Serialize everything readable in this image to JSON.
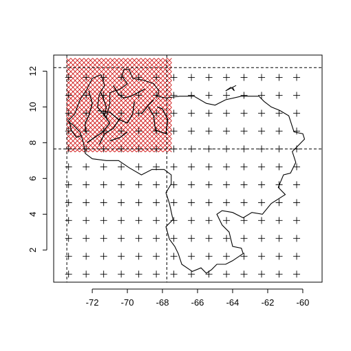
{
  "chart_data": {
    "type": "scatter",
    "title": "",
    "xlabel": "",
    "ylabel": "",
    "xlim": [
      -74.2,
      -58.9
    ],
    "ylim": [
      0.2,
      12.9
    ],
    "x_ticks": [
      -72,
      -70,
      -68,
      -66,
      -64,
      -62,
      -60
    ],
    "y_ticks": [
      2,
      4,
      6,
      8,
      10,
      12
    ],
    "x_tick_labels": [
      "-72",
      "-70",
      "-68",
      "-66",
      "-64",
      "-62",
      "-60"
    ],
    "y_tick_labels": [
      "2",
      "4",
      "6",
      "8",
      "10",
      "12"
    ],
    "grid": false,
    "coarse_grid": {
      "marker": "plus",
      "color": "#000000",
      "x_start": -73.35,
      "x_step": 1.0,
      "x_count": 14,
      "y_start": 0.65,
      "y_step": 1.0,
      "y_count": 12
    },
    "fine_grid": {
      "marker": "cross",
      "color": "#cc0000",
      "x_start": -73.35,
      "x_end": -67.4,
      "x_step": 0.25,
      "y_start": 7.6,
      "y_end": 12.6,
      "y_step": 0.25
    },
    "reference_lines": {
      "vertical": [
        -73.45,
        -67.75
      ],
      "horizontal": [
        12.2,
        7.65
      ],
      "style": "dashed",
      "color": "#000000"
    },
    "outline": [
      [
        -73.4,
        9.2
      ],
      [
        -73.0,
        9.6
      ],
      [
        -72.7,
        10.4
      ],
      [
        -72.3,
        11.0
      ],
      [
        -72.0,
        11.6
      ],
      [
        -71.5,
        11.8
      ],
      [
        -71.3,
        11.2
      ],
      [
        -71.6,
        10.7
      ],
      [
        -71.7,
        10.0
      ],
      [
        -71.2,
        9.4
      ],
      [
        -71.0,
        10.2
      ],
      [
        -71.0,
        10.8
      ],
      [
        -70.4,
        11.0
      ],
      [
        -70.0,
        11.3
      ],
      [
        -70.3,
        11.7
      ],
      [
        -70.2,
        12.1
      ],
      [
        -69.9,
        12.1
      ],
      [
        -69.7,
        11.6
      ],
      [
        -69.1,
        11.5
      ],
      [
        -68.5,
        11.3
      ],
      [
        -68.2,
        10.9
      ],
      [
        -68.3,
        10.6
      ],
      [
        -67.8,
        10.5
      ],
      [
        -67.0,
        10.6
      ],
      [
        -66.2,
        10.6
      ],
      [
        -65.5,
        10.2
      ],
      [
        -65.0,
        10.1
      ],
      [
        -64.4,
        10.4
      ],
      [
        -63.5,
        10.6
      ],
      [
        -62.5,
        10.6
      ],
      [
        -62.2,
        10.3
      ],
      [
        -61.8,
        10.0
      ],
      [
        -61.3,
        9.8
      ],
      [
        -60.8,
        9.5
      ],
      [
        -60.5,
        8.6
      ],
      [
        -60.0,
        8.5
      ],
      [
        -59.9,
        8.2
      ],
      [
        -60.2,
        7.9
      ],
      [
        -60.6,
        7.5
      ],
      [
        -60.4,
        6.9
      ],
      [
        -60.7,
        6.3
      ],
      [
        -61.1,
        6.2
      ],
      [
        -61.4,
        5.5
      ],
      [
        -61.0,
        5.1
      ],
      [
        -61.8,
        4.6
      ],
      [
        -62.3,
        4.0
      ],
      [
        -62.9,
        4.1
      ],
      [
        -63.4,
        3.8
      ],
      [
        -64.0,
        4.1
      ],
      [
        -64.6,
        4.2
      ],
      [
        -64.9,
        4.0
      ],
      [
        -64.6,
        3.4
      ],
      [
        -64.2,
        3.0
      ],
      [
        -64.0,
        2.2
      ],
      [
        -63.5,
        2.1
      ],
      [
        -63.4,
        1.8
      ],
      [
        -64.0,
        1.4
      ],
      [
        -64.4,
        1.2
      ],
      [
        -64.9,
        1.2
      ],
      [
        -65.2,
        0.9
      ],
      [
        -65.5,
        0.7
      ],
      [
        -65.8,
        1.0
      ],
      [
        -66.3,
        0.8
      ],
      [
        -66.9,
        1.2
      ],
      [
        -67.1,
        1.8
      ],
      [
        -67.3,
        2.2
      ],
      [
        -67.6,
        2.6
      ],
      [
        -67.8,
        3.3
      ],
      [
        -67.4,
        3.7
      ],
      [
        -67.6,
        4.6
      ],
      [
        -67.8,
        5.2
      ],
      [
        -67.5,
        5.7
      ],
      [
        -67.5,
        6.2
      ],
      [
        -67.9,
        6.5
      ],
      [
        -68.6,
        6.5
      ],
      [
        -69.2,
        6.2
      ],
      [
        -69.9,
        6.6
      ],
      [
        -70.5,
        7.0
      ],
      [
        -71.2,
        7.0
      ],
      [
        -72.0,
        7.1
      ],
      [
        -72.4,
        7.4
      ],
      [
        -72.5,
        8.0
      ],
      [
        -72.7,
        8.6
      ],
      [
        -73.1,
        9.0
      ],
      [
        -73.4,
        9.2
      ]
    ],
    "inner_lines": [
      [
        [
          -71.5,
          10.8
        ],
        [
          -71.2,
          10.0
        ],
        [
          -71.3,
          9.5
        ],
        [
          -71.0,
          9.1
        ],
        [
          -71.4,
          8.6
        ],
        [
          -72.0,
          8.2
        ],
        [
          -72.3,
          8.0
        ]
      ],
      [
        [
          -71.7,
          9.8
        ],
        [
          -71.0,
          9.7
        ],
        [
          -70.5,
          9.3
        ],
        [
          -70.0,
          9.1
        ],
        [
          -69.7,
          9.6
        ],
        [
          -69.6,
          10.3
        ]
      ],
      [
        [
          -70.4,
          9.4
        ],
        [
          -70.8,
          8.8
        ],
        [
          -71.3,
          8.5
        ],
        [
          -71.6,
          7.9
        ]
      ],
      [
        [
          -71.0,
          8.1
        ],
        [
          -70.4,
          8.3
        ],
        [
          -70.0,
          8.6
        ]
      ],
      [
        [
          -69.2,
          9.6
        ],
        [
          -68.8,
          10.1
        ],
        [
          -68.5,
          10.4
        ]
      ],
      [
        [
          -68.8,
          10.0
        ],
        [
          -68.5,
          9.5
        ],
        [
          -68.4,
          8.7
        ],
        [
          -67.8,
          8.5
        ],
        [
          -67.7,
          9.3
        ],
        [
          -68.0,
          9.9
        ],
        [
          -68.3,
          10.0
        ]
      ],
      [
        [
          -73.3,
          9.2
        ],
        [
          -73.2,
          8.7
        ],
        [
          -72.9,
          8.3
        ],
        [
          -72.6,
          8.4
        ]
      ],
      [
        [
          -72.2,
          10.9
        ],
        [
          -72.0,
          10.2
        ],
        [
          -72.2,
          9.5
        ],
        [
          -72.4,
          9.1
        ],
        [
          -72.4,
          8.6
        ]
      ],
      [
        [
          -70.8,
          11.2
        ],
        [
          -70.5,
          10.7
        ],
        [
          -70.2,
          10.5
        ],
        [
          -69.8,
          10.6
        ],
        [
          -69.4,
          10.8
        ],
        [
          -69.0,
          11.0
        ]
      ]
    ],
    "island": [
      [
        -64.4,
        10.9
      ],
      [
        -64.1,
        11.1
      ],
      [
        -63.9,
        10.9
      ],
      [
        -64.0,
        11.1
      ],
      [
        -63.8,
        11.2
      ],
      [
        -64.2,
        11.0
      ],
      [
        -64.4,
        10.9
      ]
    ]
  }
}
